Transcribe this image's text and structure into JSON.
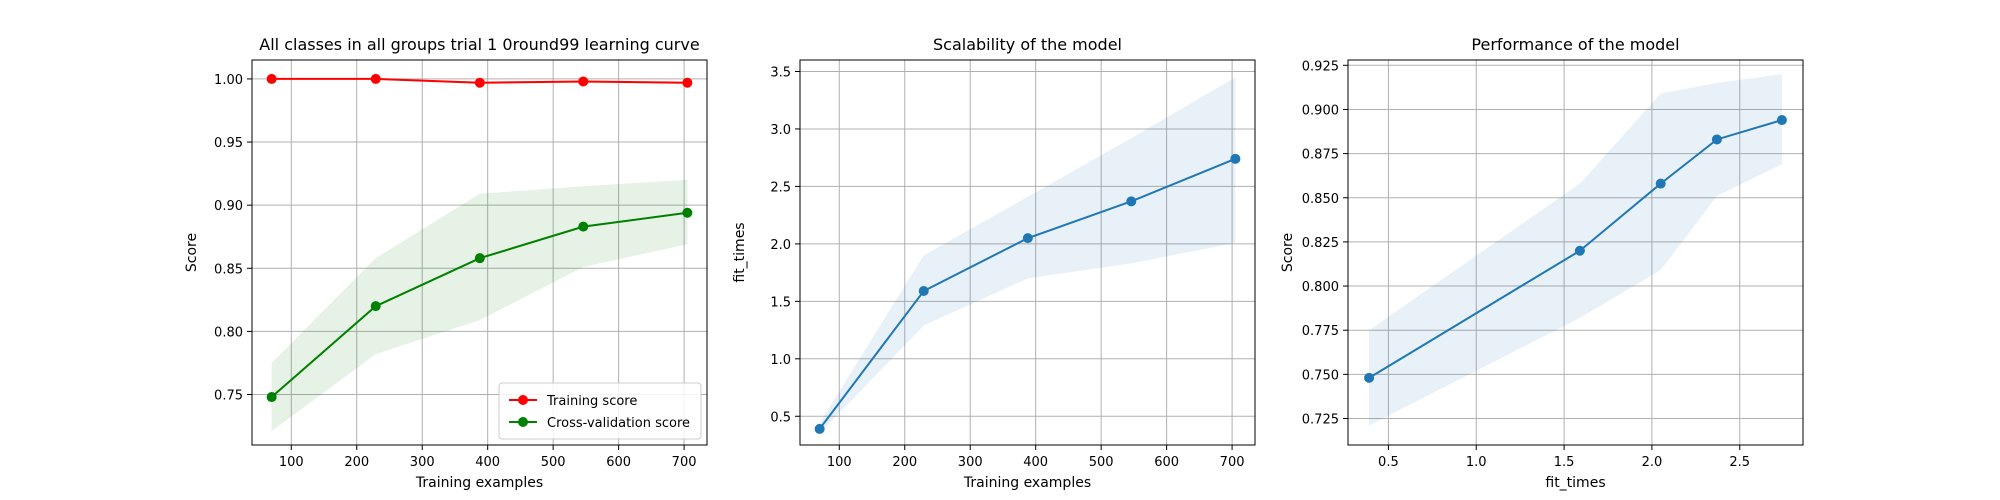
{
  "chart_data": [
    {
      "type": "line",
      "title": "All classes in all groups trial 1 0round99 learning curve",
      "xlabel": "Training examples",
      "ylabel": "Score",
      "xlim": [
        40,
        735
      ],
      "ylim": [
        0.71,
        1.015
      ],
      "xticks": [
        100,
        200,
        300,
        400,
        500,
        600,
        700
      ],
      "yticks": [
        0.75,
        0.8,
        0.85,
        0.9,
        0.95,
        1.0
      ],
      "ytick_format": 2,
      "grid": true,
      "legend": "lower-right",
      "x": [
        70,
        229,
        388,
        546,
        705
      ],
      "series": [
        {
          "name": "Training score",
          "color": "#ff0000",
          "values": [
            1.0,
            1.0,
            0.997,
            0.998,
            0.997
          ],
          "band_low": [
            1.0,
            1.0,
            0.996,
            0.997,
            0.996
          ],
          "band_high": [
            1.0,
            1.0,
            0.998,
            0.999,
            0.998
          ]
        },
        {
          "name": "Cross-validation score",
          "color": "#008000",
          "values": [
            0.748,
            0.82,
            0.858,
            0.883,
            0.894
          ],
          "band_low": [
            0.721,
            0.782,
            0.809,
            0.851,
            0.869
          ],
          "band_high": [
            0.775,
            0.858,
            0.909,
            0.915,
            0.92
          ]
        }
      ]
    },
    {
      "type": "line",
      "title": "Scalability of the model",
      "xlabel": "Training examples",
      "ylabel": "fit_times",
      "xlim": [
        40,
        735
      ],
      "ylim": [
        0.25,
        3.6
      ],
      "xticks": [
        100,
        200,
        300,
        400,
        500,
        600,
        700
      ],
      "yticks": [
        0.5,
        1.0,
        1.5,
        2.0,
        2.5,
        3.0,
        3.5
      ],
      "ytick_format": 1,
      "grid": true,
      "x": [
        70,
        229,
        388,
        546,
        705
      ],
      "series": [
        {
          "color": "#1f77b4",
          "values": [
            0.39,
            1.59,
            2.05,
            2.37,
            2.74
          ],
          "band_low": [
            0.35,
            1.29,
            1.7,
            1.83,
            2.01
          ],
          "band_high": [
            0.44,
            1.9,
            2.41,
            2.92,
            3.45
          ]
        }
      ]
    },
    {
      "type": "line",
      "title": "Performance of the model",
      "xlabel": "fit_times",
      "ylabel": "Score",
      "xlim": [
        0.27,
        2.86
      ],
      "ylim": [
        0.71,
        0.928
      ],
      "xticks": [
        0.5,
        1.0,
        1.5,
        2.0,
        2.5
      ],
      "yticks": [
        0.725,
        0.75,
        0.775,
        0.8,
        0.825,
        0.85,
        0.875,
        0.9,
        0.925
      ],
      "ytick_format": 3,
      "xtick_format": 1,
      "grid": true,
      "x": [
        0.39,
        1.59,
        2.05,
        2.37,
        2.74
      ],
      "series": [
        {
          "color": "#1f77b4",
          "values": [
            0.748,
            0.82,
            0.858,
            0.883,
            0.894
          ],
          "band_low": [
            0.721,
            0.782,
            0.809,
            0.851,
            0.869
          ],
          "band_high": [
            0.775,
            0.858,
            0.909,
            0.915,
            0.92
          ]
        }
      ]
    }
  ]
}
